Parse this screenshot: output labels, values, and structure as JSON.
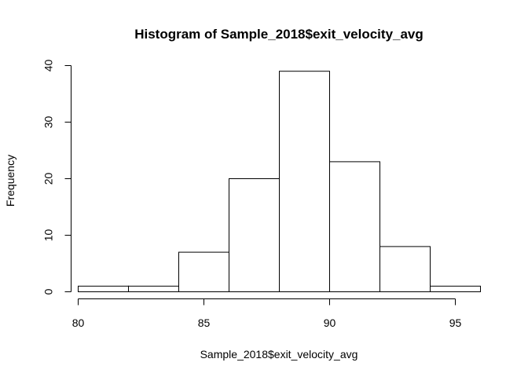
{
  "chart_data": {
    "type": "bar",
    "title": "Histogram of Sample_2018$exit_velocity_avg",
    "xlabel": "Sample_2018$exit_velocity_avg",
    "ylabel": "Frequency",
    "bins": [
      {
        "from": 80,
        "to": 82,
        "count": 1
      },
      {
        "from": 82,
        "to": 84,
        "count": 1
      },
      {
        "from": 84,
        "to": 86,
        "count": 7
      },
      {
        "from": 86,
        "to": 88,
        "count": 20
      },
      {
        "from": 88,
        "to": 90,
        "count": 39
      },
      {
        "from": 90,
        "to": 92,
        "count": 23
      },
      {
        "from": 92,
        "to": 94,
        "count": 8
      },
      {
        "from": 94,
        "to": 96,
        "count": 1
      }
    ],
    "xlim": [
      80,
      96
    ],
    "ylim": [
      0,
      40
    ],
    "x_ticks": [
      80,
      85,
      90,
      95
    ],
    "y_ticks": [
      0,
      10,
      20,
      30,
      40
    ],
    "grid": false,
    "legend": "none"
  }
}
